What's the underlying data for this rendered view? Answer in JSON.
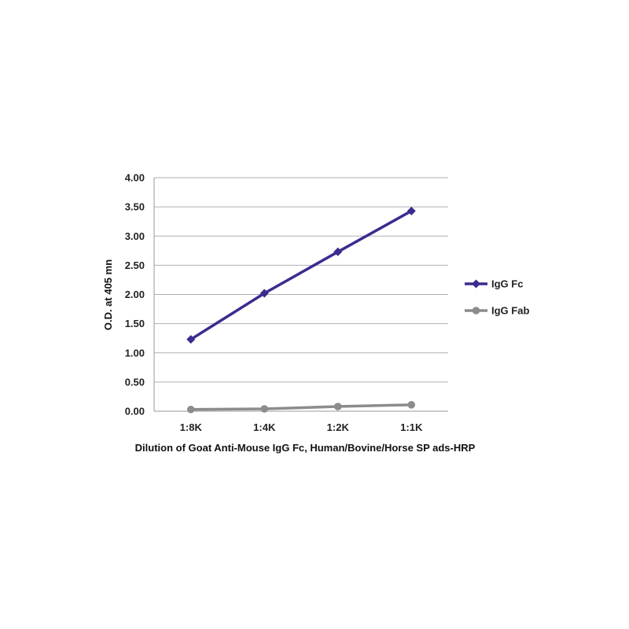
{
  "chart_data": {
    "type": "line",
    "title": "",
    "xlabel": "Dilution of Goat Anti-Mouse IgG Fc, Human/Bovine/Horse SP ads-HRP",
    "ylabel": "O.D. at 405 mn",
    "categories": [
      "1:8K",
      "1:4K",
      "1:2K",
      "1:1K"
    ],
    "ylim": [
      0,
      4
    ],
    "yticks": [
      "0.00",
      "0.50",
      "1.00",
      "1.50",
      "2.00",
      "2.50",
      "3.00",
      "3.50",
      "4.00"
    ],
    "grid": true,
    "legend_position": "right",
    "series": [
      {
        "name": "IgG Fc",
        "values": [
          1.23,
          2.02,
          2.73,
          3.43
        ],
        "color": "#3d2a8f",
        "marker": "diamond"
      },
      {
        "name": "IgG Fab",
        "values": [
          0.03,
          0.04,
          0.08,
          0.11
        ],
        "color": "#8c8c8c",
        "marker": "circle"
      }
    ]
  }
}
